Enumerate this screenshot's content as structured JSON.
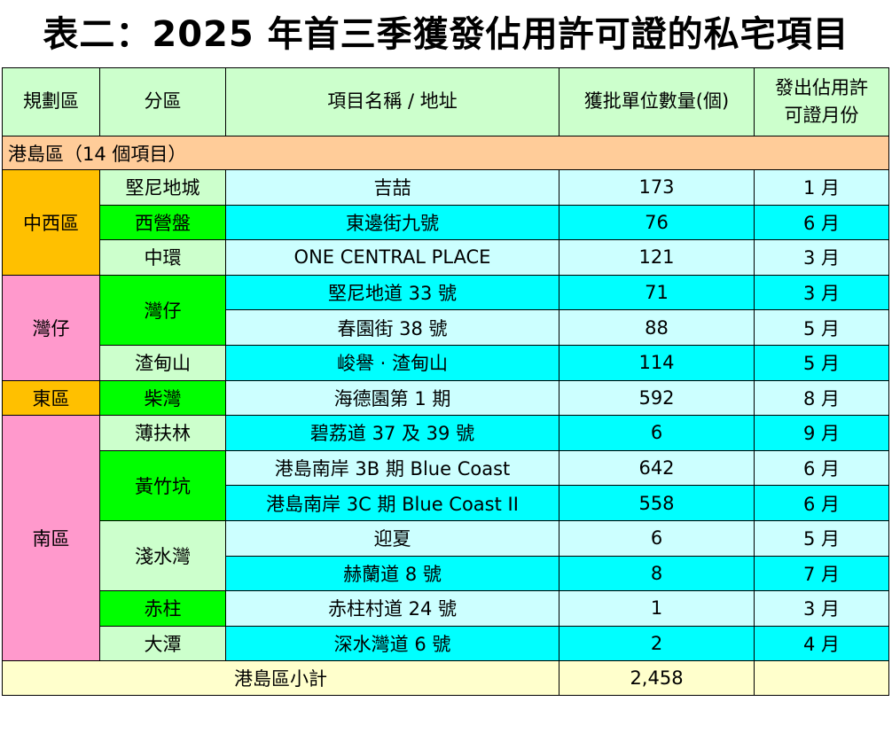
{
  "title": "表二：2025 年首三季獲發佔用許可證的私宅項目",
  "headers": {
    "region": "規劃區",
    "district": "分區",
    "project": "項目名稱 / 地址",
    "units": "獲批單位數量(個)",
    "month_line1": "發出佔用許",
    "month_line2": "可證月份"
  },
  "section": "港島區（14 個項目）",
  "regions": {
    "central_western": "中西區",
    "wan_chai": "灣仔",
    "eastern": "東區",
    "southern": "南區"
  },
  "districts": {
    "kennedy_town": "堅尼地城",
    "sai_ying_pun": "西營盤",
    "central": "中環",
    "wan_chai": "灣仔",
    "jardines_lookout": "渣甸山",
    "chai_wan": "柴灣",
    "pok_fu_lam": "薄扶林",
    "wong_chuk_hang": "黃竹坑",
    "repulse_bay": "淺水灣",
    "stanley": "赤柱",
    "tai_tam": "大潭"
  },
  "rows": [
    {
      "project": "吉喆",
      "units": "173",
      "month": "1 月"
    },
    {
      "project": "東邊街九號",
      "units": "76",
      "month": "6 月"
    },
    {
      "project": "ONE CENTRAL PLACE",
      "units": "121",
      "month": "3 月"
    },
    {
      "project": "堅尼地道 33 號",
      "units": "71",
      "month": "3 月"
    },
    {
      "project": "春園街 38 號",
      "units": "88",
      "month": "5 月"
    },
    {
      "project": "峻譽 · 渣甸山",
      "units": "114",
      "month": "5 月"
    },
    {
      "project": "海德園第 1 期",
      "units": "592",
      "month": "8 月"
    },
    {
      "project": "碧荔道 37 及 39 號",
      "units": "6",
      "month": "9 月"
    },
    {
      "project": "港島南岸 3B 期 Blue Coast",
      "units": "642",
      "month": "6 月"
    },
    {
      "project": "港島南岸 3C 期 Blue Coast II",
      "units": "558",
      "month": "6 月"
    },
    {
      "project": "迎夏",
      "units": "6",
      "month": "5 月"
    },
    {
      "project": "赫蘭道 8 號",
      "units": "8",
      "month": "7 月"
    },
    {
      "project": "赤柱村道 24 號",
      "units": "1",
      "month": "3 月"
    },
    {
      "project": "深水灣道 6 號",
      "units": "2",
      "month": "4 月"
    }
  ],
  "subtotal": {
    "label": "港島區小計",
    "units": "2,458"
  }
}
